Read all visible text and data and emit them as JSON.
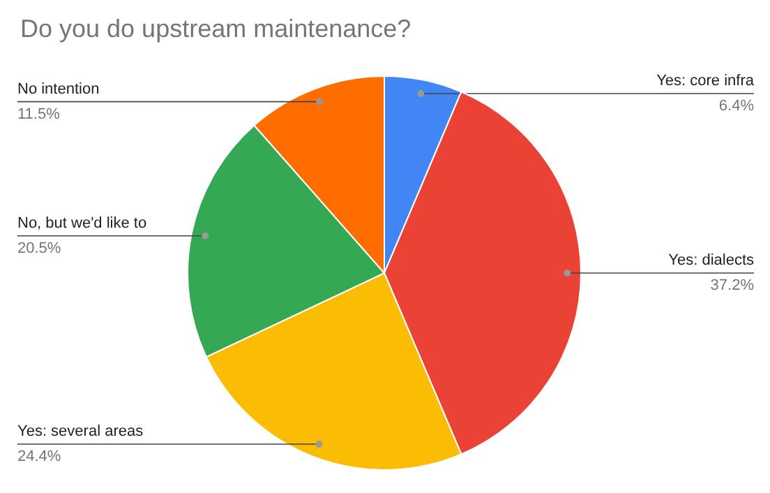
{
  "chart_data": {
    "type": "pie",
    "title": "Do you do upstream maintenance?",
    "categories": [
      "Yes: core infra",
      "Yes: dialects",
      "Yes: several areas",
      "No, but we'd like to",
      "No intention"
    ],
    "values": [
      6.4,
      37.2,
      24.4,
      20.5,
      11.5
    ],
    "value_labels": [
      "6.4%",
      "37.2%",
      "24.4%",
      "20.5%",
      "11.5%"
    ],
    "colors": [
      "#4285f4",
      "#ea4335",
      "#fbbc04",
      "#34a853",
      "#ff6d01"
    ]
  }
}
